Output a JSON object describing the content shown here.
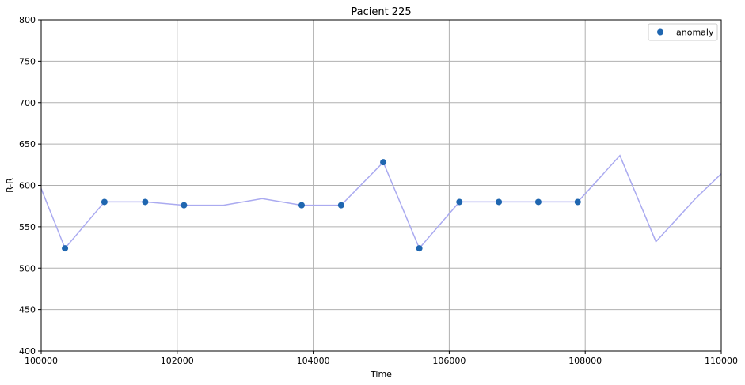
{
  "chart_data": {
    "type": "line",
    "title": "Pacient 225",
    "xlabel": "Time",
    "ylabel": "R-R",
    "xlim": [
      100000,
      110000
    ],
    "ylim": [
      400,
      800
    ],
    "xticks": [
      100000,
      102000,
      104000,
      106000,
      108000,
      110000
    ],
    "yticks": [
      400,
      450,
      500,
      550,
      600,
      650,
      700,
      750,
      800
    ],
    "grid": true,
    "legend_position": "top-right",
    "series": [
      {
        "kind": "line",
        "color": "#aaaaf0",
        "x": [
          100000,
          100350,
          100930,
          101530,
          102100,
          102680,
          103250,
          103830,
          104410,
          105030,
          105560,
          106150,
          106730,
          107310,
          107890,
          108510,
          109040,
          109620,
          110000
        ],
        "y": [
          596,
          524,
          580,
          580,
          576,
          576,
          584,
          576,
          576,
          628,
          524,
          580,
          580,
          580,
          580,
          636,
          532,
          584,
          614
        ]
      },
      {
        "kind": "scatter",
        "name": "anomaly",
        "color": "#1f66b0",
        "x": [
          100350,
          100930,
          101530,
          102100,
          103830,
          104410,
          105030,
          105560,
          106150,
          106730,
          107310,
          107890
        ],
        "y": [
          524,
          580,
          580,
          576,
          576,
          576,
          628,
          524,
          580,
          580,
          580,
          580
        ]
      }
    ]
  }
}
